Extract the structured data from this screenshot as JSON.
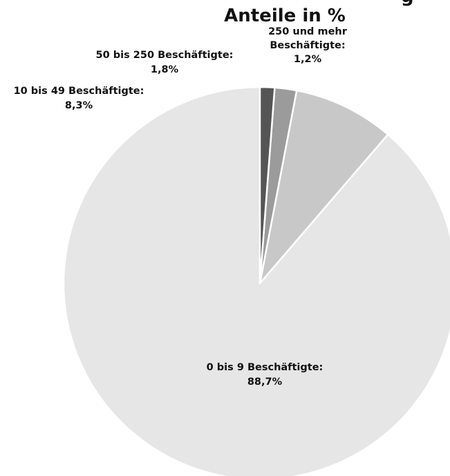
{
  "chart_data": {
    "type": "pie",
    "title_lines": [
      "Anteile in %"
    ],
    "title_partial_glyph": "g",
    "start_angle_deg": 0,
    "direction": "counterclockwise",
    "slices": [
      {
        "label_lines": [
          "0 bis 9 Beschäftigte:",
          "88,7%"
        ],
        "value": 88.7,
        "color": "#e6e6e6"
      },
      {
        "label_lines": [
          "10 bis 49 Beschäftigte:",
          "8,3%"
        ],
        "value": 8.3,
        "color": "#c8c8c8"
      },
      {
        "label_lines": [
          "50 bis 250 Beschäftigte:",
          "1,8%"
        ],
        "value": 1.8,
        "color": "#9b9b9b"
      },
      {
        "label_lines": [
          "250 und mehr",
          "Beschäftigte:",
          "1,2%"
        ],
        "value": 1.2,
        "color": "#555555"
      }
    ],
    "slice_border_color": "#ffffff",
    "legend": "none"
  }
}
